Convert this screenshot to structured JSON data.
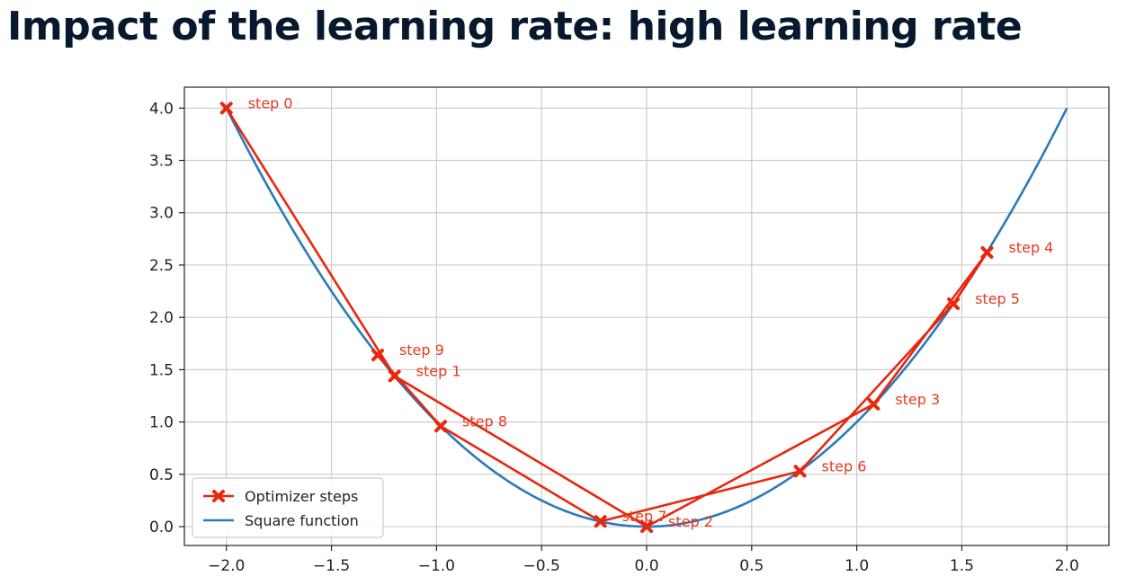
{
  "page": {
    "title": "Impact of the learning rate: high learning rate"
  },
  "colors": {
    "title": "#06192e",
    "optimizer": "#e8270f",
    "square": "#2b7bb9",
    "grid": "#cccccc",
    "axis": "#222222"
  },
  "chart_data": {
    "type": "line",
    "title": "",
    "xlabel": "",
    "ylabel": "",
    "xlim": [
      -2.2,
      2.2
    ],
    "ylim": [
      -0.18,
      4.2
    ],
    "grid": true,
    "legend_position": "lower-left",
    "x_ticks": [
      -2.0,
      -1.5,
      -1.0,
      -0.5,
      0.0,
      0.5,
      1.0,
      1.5,
      2.0
    ],
    "x_tick_labels": [
      "−2.0",
      "−1.5",
      "−1.0",
      "−0.5",
      "0.0",
      "0.5",
      "1.0",
      "1.5",
      "2.0"
    ],
    "y_ticks": [
      0.0,
      0.5,
      1.0,
      1.5,
      2.0,
      2.5,
      3.0,
      3.5,
      4.0
    ],
    "y_tick_labels": [
      "0.0",
      "0.5",
      "1.0",
      "1.5",
      "2.0",
      "2.5",
      "3.0",
      "3.5",
      "4.0"
    ],
    "series": [
      {
        "name": "Optimizer steps",
        "kind": "steps",
        "x": [
          -2.0,
          -1.2,
          0.0,
          1.08,
          1.62,
          1.46,
          0.73,
          -0.22,
          -0.98,
          -1.28
        ],
        "y": [
          4.0,
          1.44,
          0.0,
          1.17,
          2.62,
          2.13,
          0.53,
          0.05,
          0.96,
          1.64
        ],
        "labels": [
          "step 0",
          "step 1",
          "step 2",
          "step 3",
          "step 4",
          "step 5",
          "step 6",
          "step 7",
          "step 8",
          "step 9"
        ]
      },
      {
        "name": "Square function",
        "kind": "function",
        "formula": "y = x^2",
        "x_range": [
          -2.0,
          2.0
        ]
      }
    ]
  }
}
